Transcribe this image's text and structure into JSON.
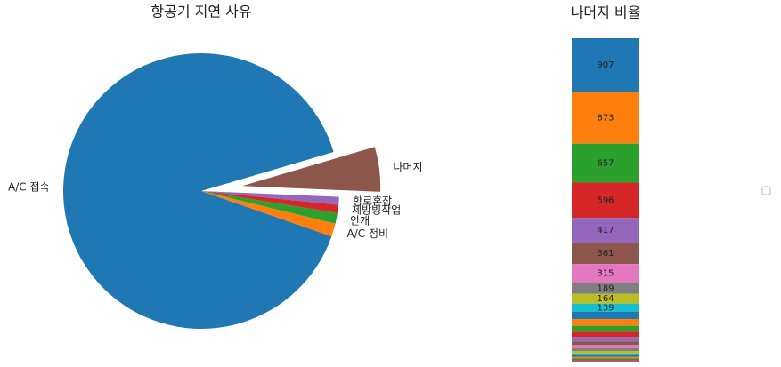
{
  "chart_data": [
    {
      "type": "pie",
      "title": "항공기 지연 사유",
      "categories": [
        "A/C 접속",
        "A/C 정비",
        "안개",
        "제방빙작업",
        "항로혼잡",
        "나머지"
      ],
      "values": [
        93500,
        1600,
        1300,
        1000,
        950,
        5458
      ],
      "colors": [
        "#1f77b4",
        "#ff7f0e",
        "#2ca02c",
        "#d62728",
        "#9467bd",
        "#8c564b"
      ],
      "explode": [
        0,
        0,
        0,
        0,
        0,
        0.3
      ]
    },
    {
      "type": "stacked-bar",
      "title": "나머지 비율",
      "values": [
        907,
        873,
        657,
        596,
        417,
        361,
        315,
        189,
        164,
        139,
        120,
        115,
        100,
        90,
        75,
        60,
        55,
        45,
        40,
        30,
        28,
        25,
        20,
        15,
        12,
        10
      ],
      "colors": [
        "#1f77b4",
        "#ff7f0e",
        "#2ca02c",
        "#d62728",
        "#9467bd",
        "#8c564b",
        "#e377c2",
        "#7f7f7f",
        "#bcbd22",
        "#17becf"
      ],
      "legend": true
    }
  ]
}
